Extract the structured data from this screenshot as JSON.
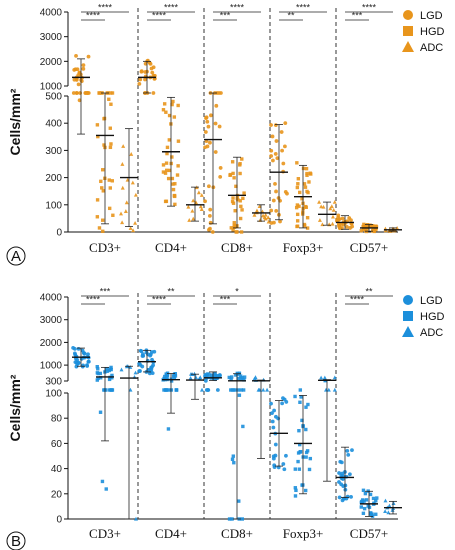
{
  "chart_data": [
    {
      "panel": "A",
      "type": "scatter",
      "ylabel": "Cells/mm²",
      "color": "#E8951C",
      "categories": [
        "CD3+",
        "CD4+",
        "CD8+",
        "Foxp3+",
        "CD57+"
      ],
      "legend": [
        {
          "label": "LGD",
          "marker": "circle"
        },
        {
          "label": "HGD",
          "marker": "square"
        },
        {
          "label": "ADC",
          "marker": "triangle"
        }
      ],
      "legend_position": "top-right",
      "y_upper_ticks": [
        1000,
        2000,
        3000,
        4000
      ],
      "y_lower_ticks": [
        0,
        100,
        200,
        300,
        400,
        500
      ],
      "y_break": [
        500,
        1000
      ],
      "groups": [
        {
          "category": "CD3+",
          "series": [
            {
              "name": "LGD",
              "mean": 1350,
              "sd_low": 360,
              "sd_high": 2100,
              "n": 30
            },
            {
              "name": "HGD",
              "mean": 355,
              "sd_low": 30,
              "sd_high": 680,
              "n": 34
            },
            {
              "name": "ADC",
              "mean": 200,
              "sd_low": 20,
              "sd_high": 380,
              "n": 14
            }
          ]
        },
        {
          "category": "CD4+",
          "series": [
            {
              "name": "LGD",
              "mean": 1350,
              "sd_low": 700,
              "sd_high": 2000,
              "n": 26
            },
            {
              "name": "HGD",
              "mean": 295,
              "sd_low": 95,
              "sd_high": 495,
              "n": 34
            },
            {
              "name": "ADC",
              "mean": 100,
              "sd_low": 40,
              "sd_high": 165,
              "n": 12
            }
          ]
        },
        {
          "category": "CD8+",
          "series": [
            {
              "name": "LGD",
              "mean": 340,
              "sd_low": 30,
              "sd_high": 650,
              "n": 30
            },
            {
              "name": "HGD",
              "mean": 135,
              "sd_low": 15,
              "sd_high": 275,
              "n": 34
            },
            {
              "name": "ADC",
              "mean": 70,
              "sd_low": 40,
              "sd_high": 100,
              "n": 12
            }
          ]
        },
        {
          "category": "Foxp3+",
          "series": [
            {
              "name": "LGD",
              "mean": 220,
              "sd_low": 45,
              "sd_high": 395,
              "n": 28
            },
            {
              "name": "HGD",
              "mean": 130,
              "sd_low": 15,
              "sd_high": 245,
              "n": 34
            },
            {
              "name": "ADC",
              "mean": 65,
              "sd_low": 25,
              "sd_high": 110,
              "n": 12
            }
          ]
        },
        {
          "category": "CD57+",
          "series": [
            {
              "name": "LGD",
              "mean": 35,
              "sd_low": 10,
              "sd_high": 60,
              "n": 26
            },
            {
              "name": "HGD",
              "mean": 15,
              "sd_low": 3,
              "sd_high": 28,
              "n": 30
            },
            {
              "name": "ADC",
              "mean": 8,
              "sd_low": 3,
              "sd_high": 15,
              "n": 10
            }
          ]
        }
      ],
      "significance": [
        {
          "category": "CD3+",
          "pair": [
            "LGD",
            "HGD"
          ],
          "label": "****"
        },
        {
          "category": "CD3+",
          "pair": [
            "LGD",
            "ADC"
          ],
          "label": "****"
        },
        {
          "category": "CD4+",
          "pair": [
            "LGD",
            "HGD"
          ],
          "label": "****"
        },
        {
          "category": "CD4+",
          "pair": [
            "LGD",
            "ADC"
          ],
          "label": "****"
        },
        {
          "category": "CD8+",
          "pair": [
            "LGD",
            "HGD"
          ],
          "label": "***"
        },
        {
          "category": "CD8+",
          "pair": [
            "LGD",
            "ADC"
          ],
          "label": "****"
        },
        {
          "category": "Foxp3+",
          "pair": [
            "LGD",
            "HGD"
          ],
          "label": "**"
        },
        {
          "category": "Foxp3+",
          "pair": [
            "LGD",
            "ADC"
          ],
          "label": "****"
        },
        {
          "category": "CD57+",
          "pair": [
            "LGD",
            "HGD"
          ],
          "label": "***"
        },
        {
          "category": "CD57+",
          "pair": [
            "LGD",
            "ADC"
          ],
          "label": "****"
        }
      ]
    },
    {
      "panel": "B",
      "type": "scatter",
      "ylabel": "Cells/mm²",
      "color": "#1C8FDB",
      "categories": [
        "CD3+",
        "CD4+",
        "CD8+",
        "Foxp3+",
        "CD57+"
      ],
      "legend": [
        {
          "label": "LGD",
          "marker": "circle"
        },
        {
          "label": "HGD",
          "marker": "square"
        },
        {
          "label": "ADC",
          "marker": "triangle"
        }
      ],
      "legend_position": "top-right",
      "y_upper_ticks": [
        1000,
        2000,
        3000,
        4000
      ],
      "y_lower_ticks": [
        0,
        20,
        40,
        60,
        80,
        100
      ],
      "y_break": [
        100,
        300
      ],
      "groups": [
        {
          "category": "CD3+",
          "series": [
            {
              "name": "LGD",
              "mean": 1350,
              "sd_low": 950,
              "sd_high": 1750,
              "n": 30
            },
            {
              "name": "HGD",
              "mean": 480,
              "sd_low": 62,
              "sd_high": 900,
              "n": 30
            },
            {
              "name": "ADC",
              "mean": 430,
              "sd_low": 0,
              "sd_high": 950,
              "n": 8
            }
          ]
        },
        {
          "category": "CD4+",
          "series": [
            {
              "name": "LGD",
              "mean": 1150,
              "sd_low": 700,
              "sd_high": 1650,
              "n": 30
            },
            {
              "name": "HGD",
              "mean": 360,
              "sd_low": 84,
              "sd_high": 630,
              "n": 30
            },
            {
              "name": "ADC",
              "mean": 340,
              "sd_low": 95,
              "sd_high": 600,
              "n": 8
            }
          ]
        },
        {
          "category": "CD8+",
          "series": [
            {
              "name": "LGD",
              "mean": 440,
              "sd_low": 320,
              "sd_high": 700,
              "n": 26
            },
            {
              "name": "HGD",
              "mean": 310,
              "sd_low": 0,
              "sd_high": 620,
              "n": 30
            },
            {
              "name": "ADC",
              "mean": 310,
              "sd_low": 48,
              "sd_high": 340,
              "n": 8
            }
          ]
        },
        {
          "category": "Foxp3+",
          "series": [
            {
              "name": "LGD",
              "mean": 68,
              "sd_low": 42,
              "sd_high": 94,
              "n": 22
            },
            {
              "name": "HGD",
              "mean": 60,
              "sd_low": 20,
              "sd_high": 98,
              "n": 30
            },
            {
              "name": "ADC",
              "mean": 330,
              "sd_low": 30,
              "sd_high": 360,
              "n": 8
            }
          ]
        },
        {
          "category": "CD57+",
          "series": [
            {
              "name": "LGD",
              "mean": 33,
              "sd_low": 17,
              "sd_high": 57,
              "n": 26
            },
            {
              "name": "HGD",
              "mean": 12,
              "sd_low": 2,
              "sd_high": 22,
              "n": 26
            },
            {
              "name": "ADC",
              "mean": 9,
              "sd_low": 4,
              "sd_high": 14,
              "n": 8
            }
          ]
        }
      ],
      "significance": [
        {
          "category": "CD3+",
          "pair": [
            "LGD",
            "HGD"
          ],
          "label": "****"
        },
        {
          "category": "CD3+",
          "pair": [
            "LGD",
            "ADC"
          ],
          "label": "***"
        },
        {
          "category": "CD4+",
          "pair": [
            "LGD",
            "HGD"
          ],
          "label": "****"
        },
        {
          "category": "CD4+",
          "pair": [
            "LGD",
            "ADC"
          ],
          "label": "**"
        },
        {
          "category": "CD8+",
          "pair": [
            "LGD",
            "HGD"
          ],
          "label": "***"
        },
        {
          "category": "CD8+",
          "pair": [
            "LGD",
            "ADC"
          ],
          "label": "*"
        },
        {
          "category": "CD57+",
          "pair": [
            "LGD",
            "HGD"
          ],
          "label": "****"
        },
        {
          "category": "CD57+",
          "pair": [
            "LGD",
            "ADC"
          ],
          "label": "**"
        }
      ]
    }
  ]
}
